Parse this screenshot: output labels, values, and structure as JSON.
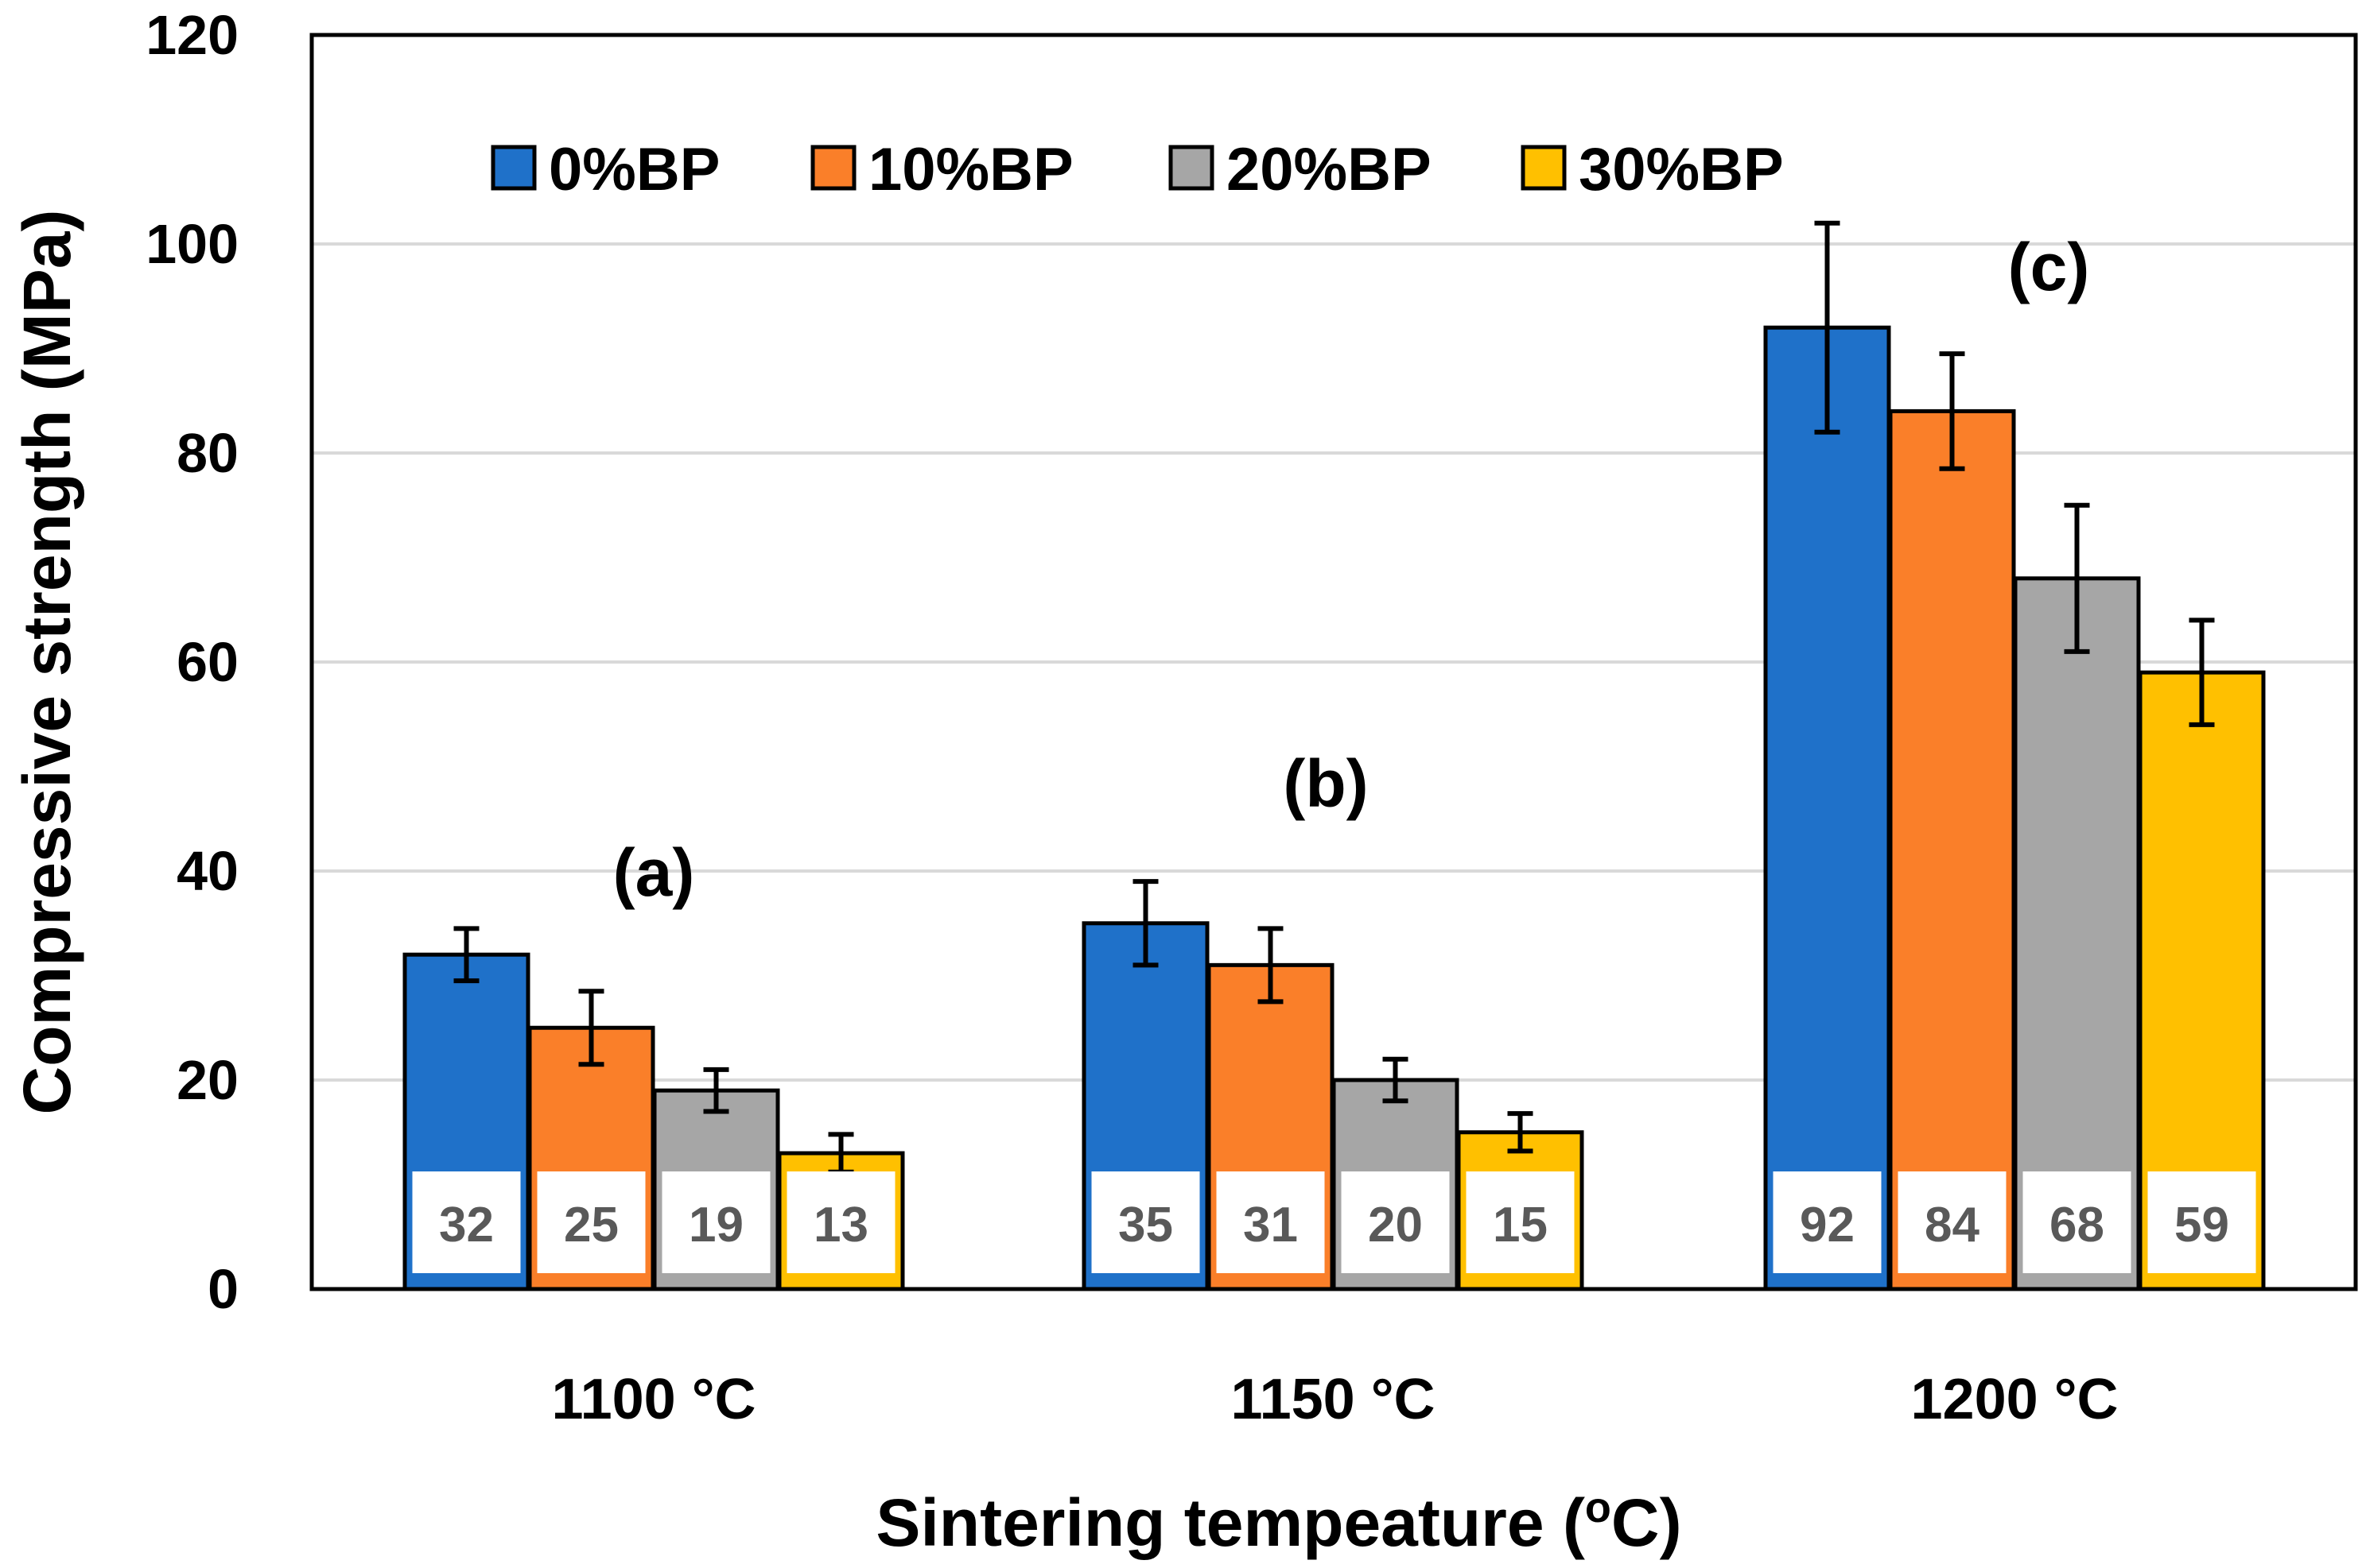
{
  "chart_data": {
    "type": "bar",
    "title": "",
    "xlabel": "Sintering tempeature",
    "xlabel_unit_base": "(",
    "xlabel_unit_sup": "o",
    "xlabel_unit_rest": "C)",
    "ylabel": "Compressive strength (MPa)",
    "ylim": [
      0,
      120
    ],
    "yticks": [
      0,
      20,
      40,
      60,
      80,
      100,
      120
    ],
    "grid": true,
    "legend_position": "top",
    "categories": [
      "1100 °C",
      "1150 °C",
      "1200 °C"
    ],
    "annotations": [
      "(a)",
      "(b)",
      "(c)"
    ],
    "series": [
      {
        "name": "0%BP",
        "color": "#1F71C9",
        "values": [
          32,
          35,
          92
        ],
        "errors": [
          2.5,
          4,
          10
        ]
      },
      {
        "name": "10%BP",
        "color": "#FA7F29",
        "values": [
          25,
          31,
          84
        ],
        "errors": [
          3.5,
          3.5,
          5.5
        ]
      },
      {
        "name": "20%BP",
        "color": "#A6A6A6",
        "values": [
          19,
          20,
          68
        ],
        "errors": [
          2,
          2,
          7
        ]
      },
      {
        "name": "30%BP",
        "color": "#FFC000",
        "values": [
          13,
          15,
          59
        ],
        "errors": [
          1.8,
          1.8,
          5
        ]
      }
    ]
  }
}
